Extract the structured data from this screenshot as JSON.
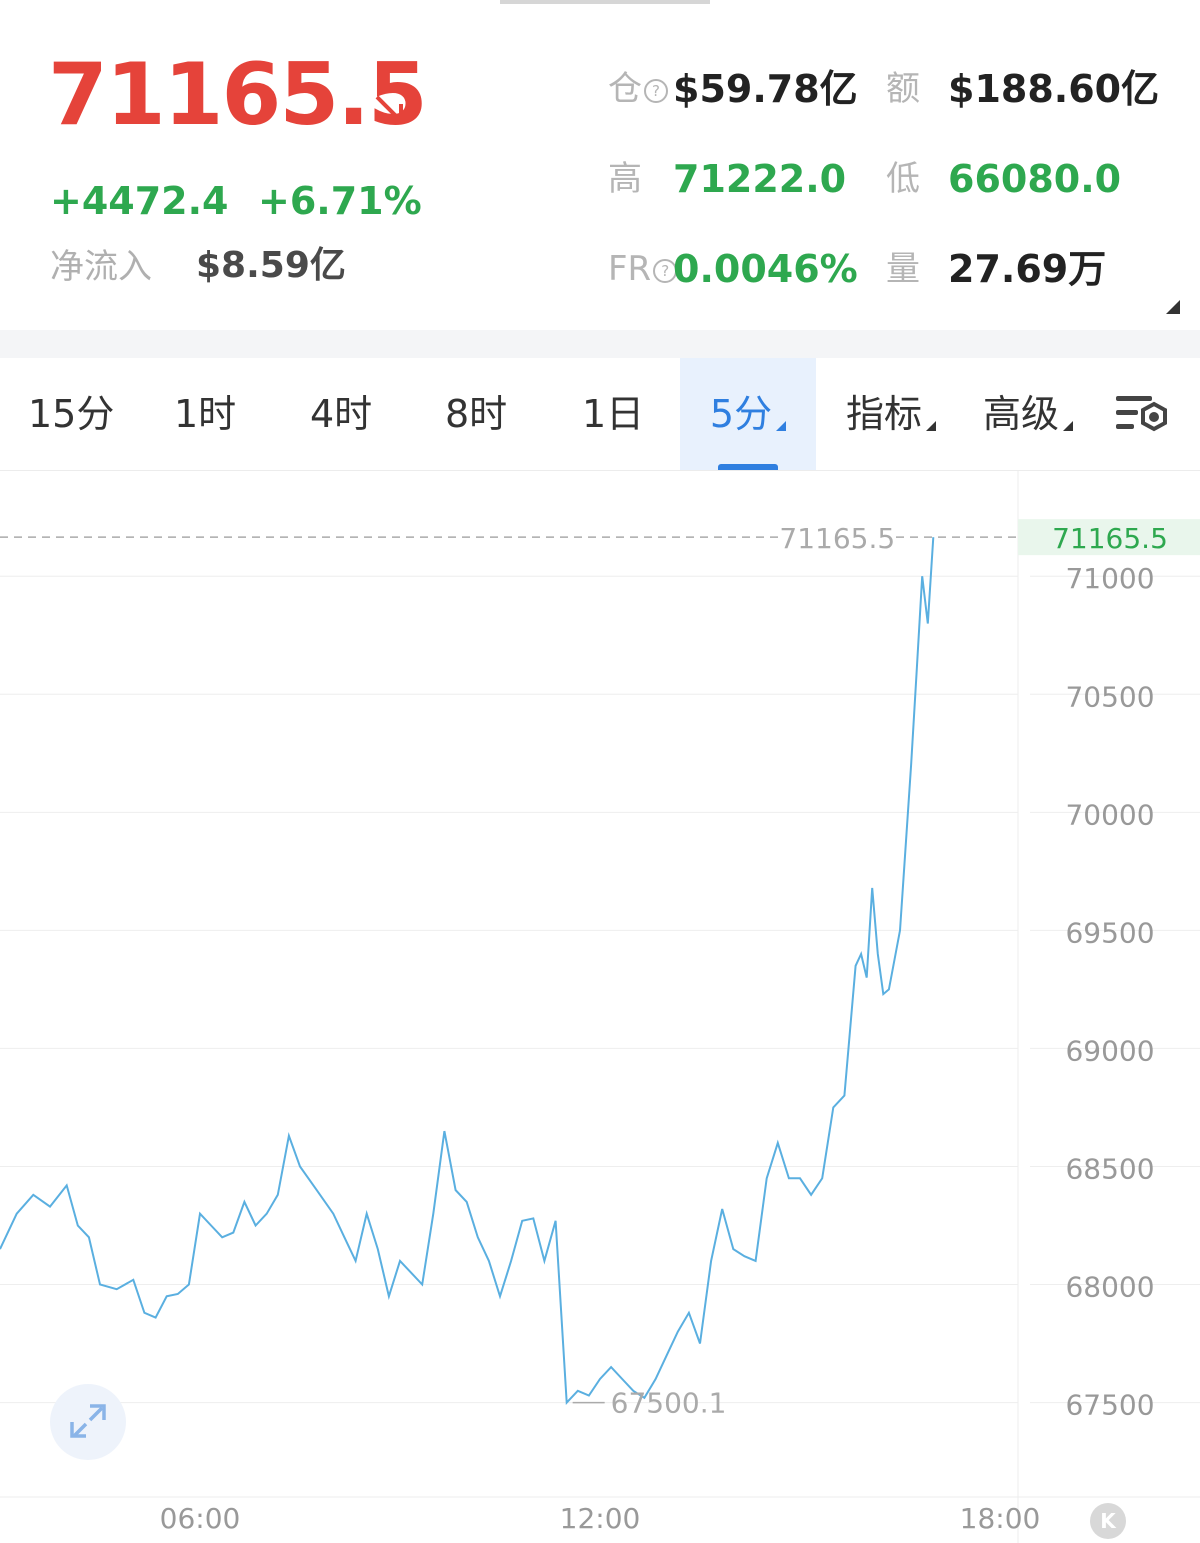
{
  "ticker": {
    "price": "71165.5",
    "change_abs": "+4472.4",
    "change_pct": "+6.71%",
    "netflow_label": "净流入",
    "netflow_value": "$8.59亿"
  },
  "stats": {
    "open_interest_label": "仓",
    "open_interest_value": "$59.78亿",
    "turnover_label": "额",
    "turnover_value": "$188.60亿",
    "high_label": "高",
    "high_value": "71222.0",
    "low_label": "低",
    "low_value": "66080.0",
    "funding_label": "FR",
    "funding_value": "0.0046%",
    "volume_label": "量",
    "volume_value": "27.69万"
  },
  "tabs": [
    {
      "label": "15分"
    },
    {
      "label": "1时"
    },
    {
      "label": "4时"
    },
    {
      "label": "8时"
    },
    {
      "label": "1日"
    },
    {
      "label": "5分",
      "active": true
    },
    {
      "label": "指标"
    },
    {
      "label": "高级"
    }
  ],
  "colors": {
    "price_down": "#e5433a",
    "up_green": "#2ea84f",
    "line": "#5aafe0",
    "accent": "#2f7fe0"
  },
  "icons": [
    "arrow-down-right-icon",
    "help-icon",
    "chart-settings-icon",
    "fullscreen-icon",
    "k-logo-icon"
  ],
  "chart_data": {
    "type": "line",
    "title": "",
    "xlabel": "",
    "ylabel": "",
    "x_ticks": [
      "06:00",
      "12:00",
      "18:00"
    ],
    "y_ticks": [
      67500,
      68000,
      68500,
      69000,
      69500,
      70000,
      70500,
      71000
    ],
    "ylim": [
      67100,
      71450
    ],
    "xlim": [
      "03:00",
      "21:00"
    ],
    "last_price": 71165.5,
    "last_price_label": "71165.5",
    "max_label": "71165.5",
    "min_label": "67500.1",
    "grid": true,
    "series": [
      {
        "values": [
          [
            "03:00",
            68150
          ],
          [
            "03:15",
            68300
          ],
          [
            "03:30",
            68380
          ],
          [
            "03:45",
            68330
          ],
          [
            "04:00",
            68420
          ],
          [
            "04:10",
            68250
          ],
          [
            "04:20",
            68200
          ],
          [
            "04:30",
            68000
          ],
          [
            "04:45",
            67980
          ],
          [
            "05:00",
            68020
          ],
          [
            "05:10",
            67880
          ],
          [
            "05:20",
            67860
          ],
          [
            "05:30",
            67950
          ],
          [
            "05:40",
            67960
          ],
          [
            "05:50",
            68000
          ],
          [
            "06:00",
            68300
          ],
          [
            "06:10",
            68250
          ],
          [
            "06:20",
            68200
          ],
          [
            "06:30",
            68220
          ],
          [
            "06:40",
            68350
          ],
          [
            "06:50",
            68250
          ],
          [
            "07:00",
            68300
          ],
          [
            "07:10",
            68380
          ],
          [
            "07:20",
            68630
          ],
          [
            "07:30",
            68500
          ],
          [
            "07:45",
            68400
          ],
          [
            "08:00",
            68300
          ],
          [
            "08:10",
            68200
          ],
          [
            "08:20",
            68100
          ],
          [
            "08:30",
            68300
          ],
          [
            "08:40",
            68150
          ],
          [
            "08:50",
            67950
          ],
          [
            "09:00",
            68100
          ],
          [
            "09:10",
            68050
          ],
          [
            "09:20",
            68000
          ],
          [
            "09:30",
            68300
          ],
          [
            "09:40",
            68650
          ],
          [
            "09:50",
            68400
          ],
          [
            "10:00",
            68350
          ],
          [
            "10:10",
            68200
          ],
          [
            "10:20",
            68100
          ],
          [
            "10:30",
            67950
          ],
          [
            "10:40",
            68100
          ],
          [
            "10:50",
            68270
          ],
          [
            "11:00",
            68280
          ],
          [
            "11:10",
            68100
          ],
          [
            "11:20",
            68270
          ],
          [
            "11:30",
            67500
          ],
          [
            "11:40",
            67550
          ],
          [
            "11:50",
            67530
          ],
          [
            "12:00",
            67600
          ],
          [
            "12:10",
            67650
          ],
          [
            "12:20",
            67600
          ],
          [
            "12:30",
            67550
          ],
          [
            "12:40",
            67520
          ],
          [
            "12:50",
            67600
          ],
          [
            "13:00",
            67700
          ],
          [
            "13:10",
            67800
          ],
          [
            "13:20",
            67880
          ],
          [
            "13:30",
            67750
          ],
          [
            "13:40",
            68100
          ],
          [
            "13:50",
            68320
          ],
          [
            "14:00",
            68150
          ],
          [
            "14:10",
            68120
          ],
          [
            "14:20",
            68100
          ],
          [
            "14:30",
            68450
          ],
          [
            "14:40",
            68600
          ],
          [
            "14:50",
            68450
          ],
          [
            "15:00",
            68450
          ],
          [
            "15:10",
            68380
          ],
          [
            "15:20",
            68450
          ],
          [
            "15:30",
            68750
          ],
          [
            "15:40",
            68800
          ],
          [
            "15:50",
            69350
          ],
          [
            "15:55",
            69400
          ],
          [
            "16:00",
            69300
          ],
          [
            "16:05",
            69680
          ],
          [
            "16:10",
            69400
          ],
          [
            "16:15",
            69230
          ],
          [
            "16:20",
            69250
          ],
          [
            "16:30",
            69500
          ],
          [
            "16:40",
            70200
          ],
          [
            "16:45",
            70600
          ],
          [
            "16:50",
            71000
          ],
          [
            "16:55",
            70800
          ],
          [
            "17:00",
            71165.5
          ]
        ]
      }
    ]
  }
}
